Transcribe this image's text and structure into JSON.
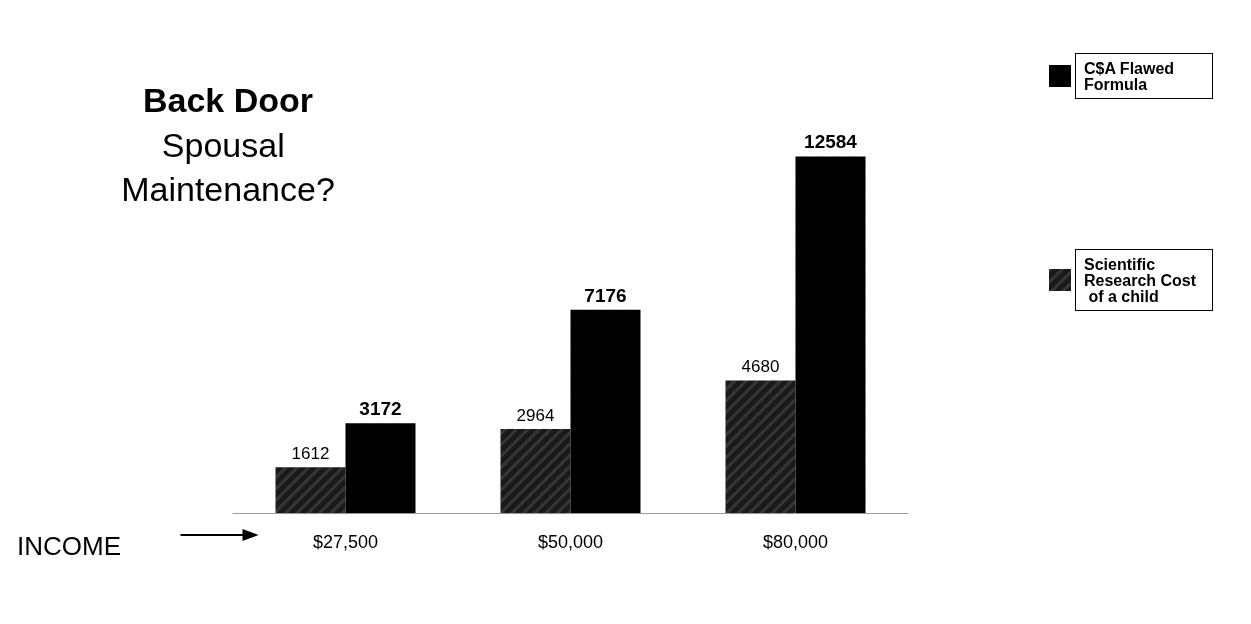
{
  "chart_data": {
    "type": "bar",
    "title": "Back Door",
    "subtitle": "Spousal Maintenance?",
    "xlabel": "INCOME",
    "categories": [
      "$27,500",
      "$50,000",
      "$80,000"
    ],
    "series": [
      {
        "name": "Scientific Research Cost of a child",
        "color": "#1a1a1a",
        "values": [
          1612,
          2964,
          4680
        ]
      },
      {
        "name": "C$A Flawed Formula",
        "color": "#000000",
        "values": [
          3172,
          7176,
          12584
        ]
      }
    ],
    "data_labels": true,
    "legend": "right",
    "grid": false
  }
}
